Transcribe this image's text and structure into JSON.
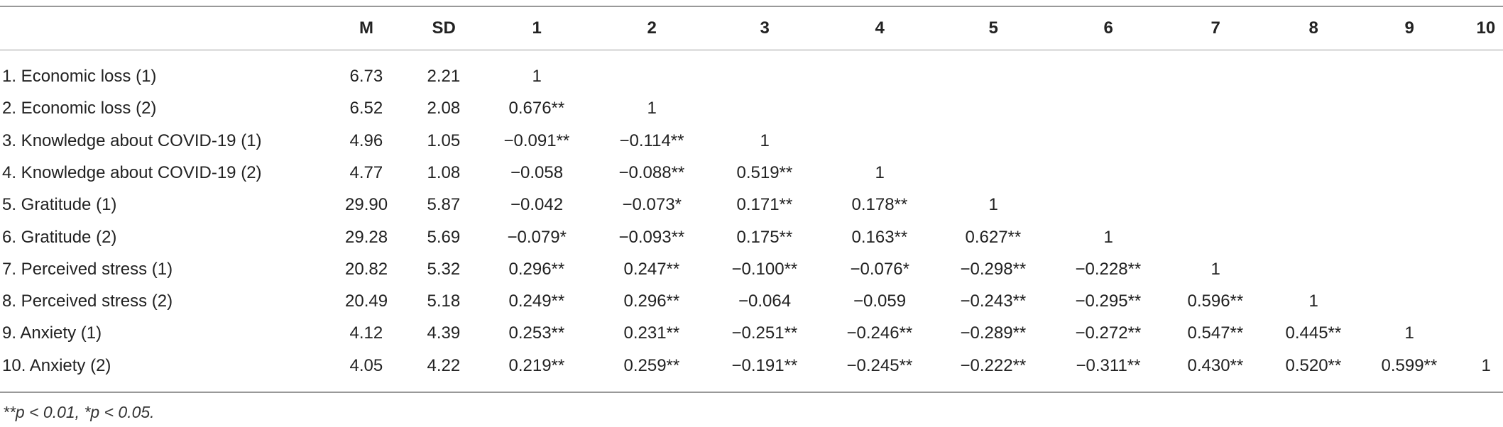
{
  "table": {
    "columns": [
      "M",
      "SD",
      "1",
      "2",
      "3",
      "4",
      "5",
      "6",
      "7",
      "8",
      "9",
      "10"
    ],
    "rows": [
      [
        "1. Economic loss (1)",
        "6.73",
        "2.21",
        "1"
      ],
      [
        "2. Economic loss (2)",
        "6.52",
        "2.08",
        "0.676**",
        "1"
      ],
      [
        "3. Knowledge about COVID-19 (1)",
        "4.96",
        "1.05",
        "−0.091**",
        "−0.114**",
        "1"
      ],
      [
        "4. Knowledge about COVID-19 (2)",
        "4.77",
        "1.08",
        "−0.058",
        "−0.088**",
        "0.519**",
        "1"
      ],
      [
        "5. Gratitude (1)",
        "29.90",
        "5.87",
        "−0.042",
        "−0.073*",
        "0.171**",
        "0.178**",
        "1"
      ],
      [
        "6. Gratitude (2)",
        "29.28",
        "5.69",
        "−0.079*",
        "−0.093**",
        "0.175**",
        "0.163**",
        "0.627**",
        "1"
      ],
      [
        "7. Perceived stress (1)",
        "20.82",
        "5.32",
        "0.296**",
        "0.247**",
        "−0.100**",
        "−0.076*",
        "−0.298**",
        "−0.228**",
        "1"
      ],
      [
        "8. Perceived stress (2)",
        "20.49",
        "5.18",
        "0.249**",
        "0.296**",
        "−0.064",
        "−0.059",
        "−0.243**",
        "−0.295**",
        "0.596**",
        "1"
      ],
      [
        "9. Anxiety (1)",
        "4.12",
        "4.39",
        "0.253**",
        "0.231**",
        "−0.251**",
        "−0.246**",
        "−0.289**",
        "−0.272**",
        "0.547**",
        "0.445**",
        "1"
      ],
      [
        "10. Anxiety (2)",
        "4.05",
        "4.22",
        "0.219**",
        "0.259**",
        "−0.191**",
        "−0.245**",
        "−0.222**",
        "−0.311**",
        "0.430**",
        "0.520**",
        "0.599**",
        "1"
      ]
    ],
    "footnote": "**p < 0.01, *p < 0.05."
  }
}
